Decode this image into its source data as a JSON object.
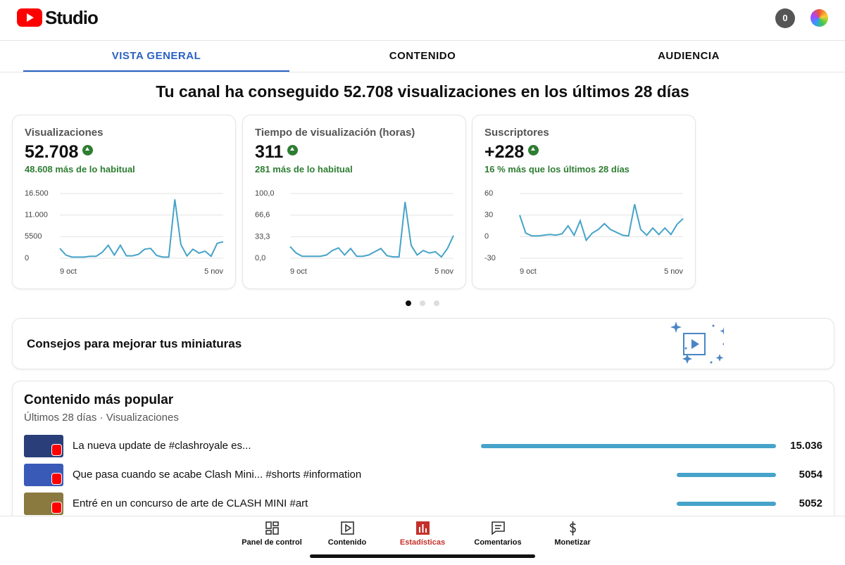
{
  "header": {
    "logo": "Studio",
    "notifications": "0"
  },
  "tabs": [
    "VISTA GENERAL",
    "CONTENIDO",
    "AUDIENCIA"
  ],
  "headline": "Tu canal ha conseguido 52.708 visualizaciones en los últimos 28 días",
  "cards": [
    {
      "title": "Visualizaciones",
      "value": "52.708",
      "delta": "48.608 más de lo habitual",
      "chart": {
        "type": "line",
        "color": "#46a3c9",
        "categories": [
          "9 oct",
          null,
          null,
          null,
          null,
          null,
          null,
          null,
          null,
          null,
          null,
          null,
          null,
          null,
          null,
          null,
          null,
          null,
          null,
          null,
          null,
          null,
          null,
          null,
          null,
          null,
          null,
          "5 nov"
        ],
        "values": [
          2500,
          800,
          300,
          300,
          300,
          500,
          500,
          1500,
          3300,
          800,
          3300,
          600,
          600,
          1000,
          2300,
          2500,
          700,
          300,
          300,
          15000,
          3500,
          600,
          2300,
          1300,
          1800,
          500,
          3800,
          4200
        ],
        "ylim": [
          0,
          16500
        ],
        "yticks": [
          0,
          5500,
          {
            "value": 11000,
            "label": "11.000"
          },
          {
            "value": 16500,
            "label": "16.500"
          }
        ]
      }
    },
    {
      "title": "Tiempo de visualización (horas)",
      "value": "311",
      "delta": "281 más de lo habitual",
      "chart": {
        "type": "line",
        "color": "#46a3c9",
        "categories": [
          "9 oct",
          null,
          null,
          null,
          null,
          null,
          null,
          null,
          null,
          null,
          null,
          null,
          null,
          null,
          null,
          null,
          null,
          null,
          null,
          null,
          null,
          null,
          null,
          null,
          null,
          null,
          null,
          "5 nov"
        ],
        "values": [
          18,
          8,
          3,
          3,
          3,
          3,
          5,
          12,
          16,
          5,
          15,
          3,
          3,
          5,
          10,
          15,
          4,
          2,
          2,
          87,
          20,
          5,
          12,
          8,
          10,
          2,
          15,
          35
        ],
        "ylim": [
          0,
          100
        ],
        "yticks": [
          {
            "value": 0,
            "label": "0,0"
          },
          {
            "value": 33.3,
            "label": "33,3"
          },
          {
            "value": 66.6,
            "label": "66,6"
          },
          {
            "value": 100,
            "label": "100,0"
          }
        ]
      }
    },
    {
      "title": "Suscriptores",
      "value": "+228",
      "delta": "16 % más que los últimos 28 días",
      "chart": {
        "type": "line",
        "color": "#46a3c9",
        "categories": [
          "9 oct",
          null,
          null,
          null,
          null,
          null,
          null,
          null,
          null,
          null,
          null,
          null,
          null,
          null,
          null,
          null,
          null,
          null,
          null,
          null,
          null,
          null,
          null,
          null,
          null,
          null,
          null,
          "5 nov"
        ],
        "values": [
          30,
          5,
          1,
          1,
          2,
          3,
          2,
          4,
          15,
          2,
          22,
          -5,
          5,
          10,
          18,
          10,
          6,
          2,
          1,
          45,
          10,
          2,
          12,
          3,
          12,
          3,
          17,
          25
        ],
        "ylim": [
          -30,
          60
        ],
        "yticks": [
          -30,
          0,
          30,
          60
        ]
      }
    }
  ],
  "tip": "Consejos para mejorar tus miniaturas",
  "popular": {
    "title": "Contenido más popular",
    "subtitle": "Últimos 28 días · Visualizaciones",
    "titles": [
      "La nueva update de #clashroyale  es...",
      "Que pasa cuando se acabe Clash Mini... #shorts #information",
      "Entré en un concurso de arte de CLASH MINI #art"
    ],
    "values": [
      15036,
      5054,
      5052
    ],
    "value_labels": [
      "15.036",
      "5054",
      "5052"
    ],
    "color": "#46a3c9"
  },
  "nav": [
    "Panel de control",
    "Contenido",
    "Estadísticas",
    "Comentarios",
    "Monetizar"
  ]
}
